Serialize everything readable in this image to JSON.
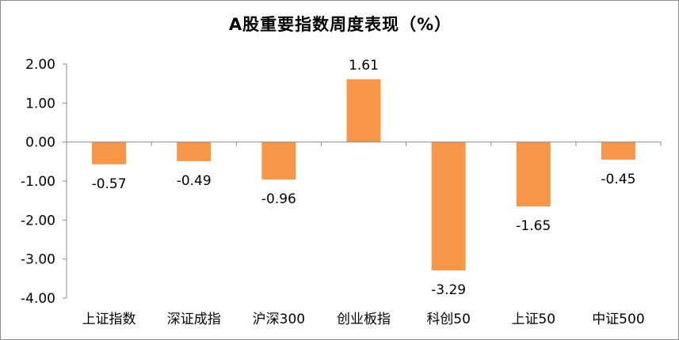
{
  "chart_data": {
    "type": "bar",
    "title": "A股重要指数周度表现（%）",
    "categories": [
      "上证指数",
      "深证成指",
      "沪深300",
      "创业板指",
      "科创50",
      "上证50",
      "中证500"
    ],
    "values": [
      -0.57,
      -0.49,
      -0.96,
      1.61,
      -3.29,
      -1.65,
      -0.45
    ],
    "value_labels": [
      "-0.57",
      "-0.49",
      "-0.96",
      "1.61",
      "-3.29",
      "-1.65",
      "-0.45"
    ],
    "yticks": [
      "2.00",
      "1.00",
      "0.00",
      "-1.00",
      "-2.00",
      "-3.00",
      "-4.00"
    ],
    "ylim": [
      -4,
      2
    ],
    "xlabel": "",
    "ylabel": "",
    "grid": false,
    "legend": "none",
    "bar_color": "#f79646"
  }
}
